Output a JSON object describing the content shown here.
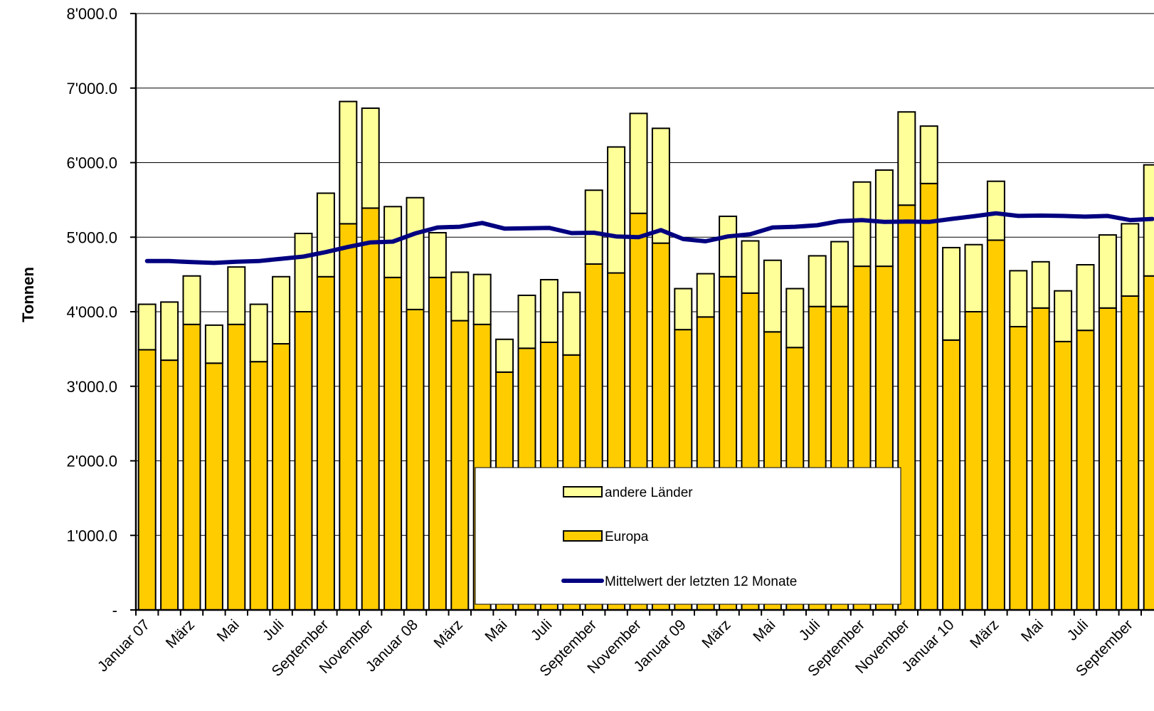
{
  "chart_data": {
    "type": "bar",
    "stacked": true,
    "ylabel": "Tonnen",
    "xlabel": "",
    "ylim": [
      0,
      8000
    ],
    "yticks": [
      0,
      1000,
      2000,
      3000,
      4000,
      5000,
      6000,
      7000,
      8000
    ],
    "ytick_labels": [
      "-",
      "1'000.0",
      "2'000.0",
      "3'000.0",
      "4'000.0",
      "5'000.0",
      "6'000.0",
      "7'000.0",
      "8'000.0"
    ],
    "grid": true,
    "legend_position": "bottom-center",
    "colors": {
      "europa": "#FFCC00",
      "andere": "#FFFF99",
      "line": "#000080",
      "outline": "#000000"
    },
    "xtick_labels": [
      {
        "index": 0,
        "label": "Januar 07"
      },
      {
        "index": 2,
        "label": "März"
      },
      {
        "index": 4,
        "label": "Mai"
      },
      {
        "index": 6,
        "label": "Juli"
      },
      {
        "index": 8,
        "label": "September"
      },
      {
        "index": 10,
        "label": "November"
      },
      {
        "index": 12,
        "label": "Januar 08"
      },
      {
        "index": 14,
        "label": "März"
      },
      {
        "index": 16,
        "label": "Mai"
      },
      {
        "index": 18,
        "label": "Juli"
      },
      {
        "index": 20,
        "label": "September"
      },
      {
        "index": 22,
        "label": "November"
      },
      {
        "index": 24,
        "label": "Januar 09"
      },
      {
        "index": 26,
        "label": "März"
      },
      {
        "index": 28,
        "label": "Mai"
      },
      {
        "index": 30,
        "label": "Juli"
      },
      {
        "index": 32,
        "label": "September"
      },
      {
        "index": 34,
        "label": "November"
      },
      {
        "index": 36,
        "label": "Januar 10"
      },
      {
        "index": 38,
        "label": "März"
      },
      {
        "index": 40,
        "label": "Mai"
      },
      {
        "index": 42,
        "label": "Juli"
      },
      {
        "index": 44,
        "label": "September"
      }
    ],
    "series": [
      {
        "name": "Europa",
        "values": [
          3490,
          3350,
          3830,
          3310,
          3830,
          3330,
          3570,
          4000,
          4470,
          5180,
          5390,
          4460,
          4030,
          4460,
          3880,
          3830,
          3190,
          3510,
          3590,
          3420,
          4640,
          4520,
          5320,
          4920,
          3760,
          3930,
          4470,
          4250,
          3730,
          3520,
          4070,
          4070,
          4610,
          4610,
          5430,
          5720,
          3620,
          4000,
          4960,
          3800,
          4050,
          3600,
          3750,
          4050,
          4210,
          4480
        ]
      },
      {
        "name": "andere Länder",
        "values": [
          610,
          780,
          650,
          510,
          770,
          770,
          900,
          1050,
          1120,
          1640,
          1340,
          950,
          1500,
          600,
          650,
          670,
          440,
          710,
          840,
          840,
          990,
          1690,
          1340,
          1540,
          550,
          580,
          810,
          700,
          960,
          790,
          680,
          870,
          1130,
          1290,
          1250,
          770,
          1240,
          900,
          790,
          750,
          620,
          680,
          880,
          980,
          970,
          1490
        ]
      },
      {
        "name": "Mittelwert der letzten 12 Monate",
        "type": "line",
        "values": [
          4680,
          4680,
          4665,
          4655,
          4670,
          4680,
          4710,
          4740,
          4800,
          4870,
          4930,
          4940,
          5050,
          5130,
          5140,
          5190,
          5115,
          5120,
          5125,
          5055,
          5060,
          5010,
          5000,
          5095,
          4975,
          4945,
          5010,
          5040,
          5130,
          5140,
          5160,
          5215,
          5230,
          5205,
          5210,
          5205,
          5245,
          5280,
          5320,
          5285,
          5290,
          5285,
          5275,
          5285,
          5230,
          5245
        ]
      }
    ]
  }
}
